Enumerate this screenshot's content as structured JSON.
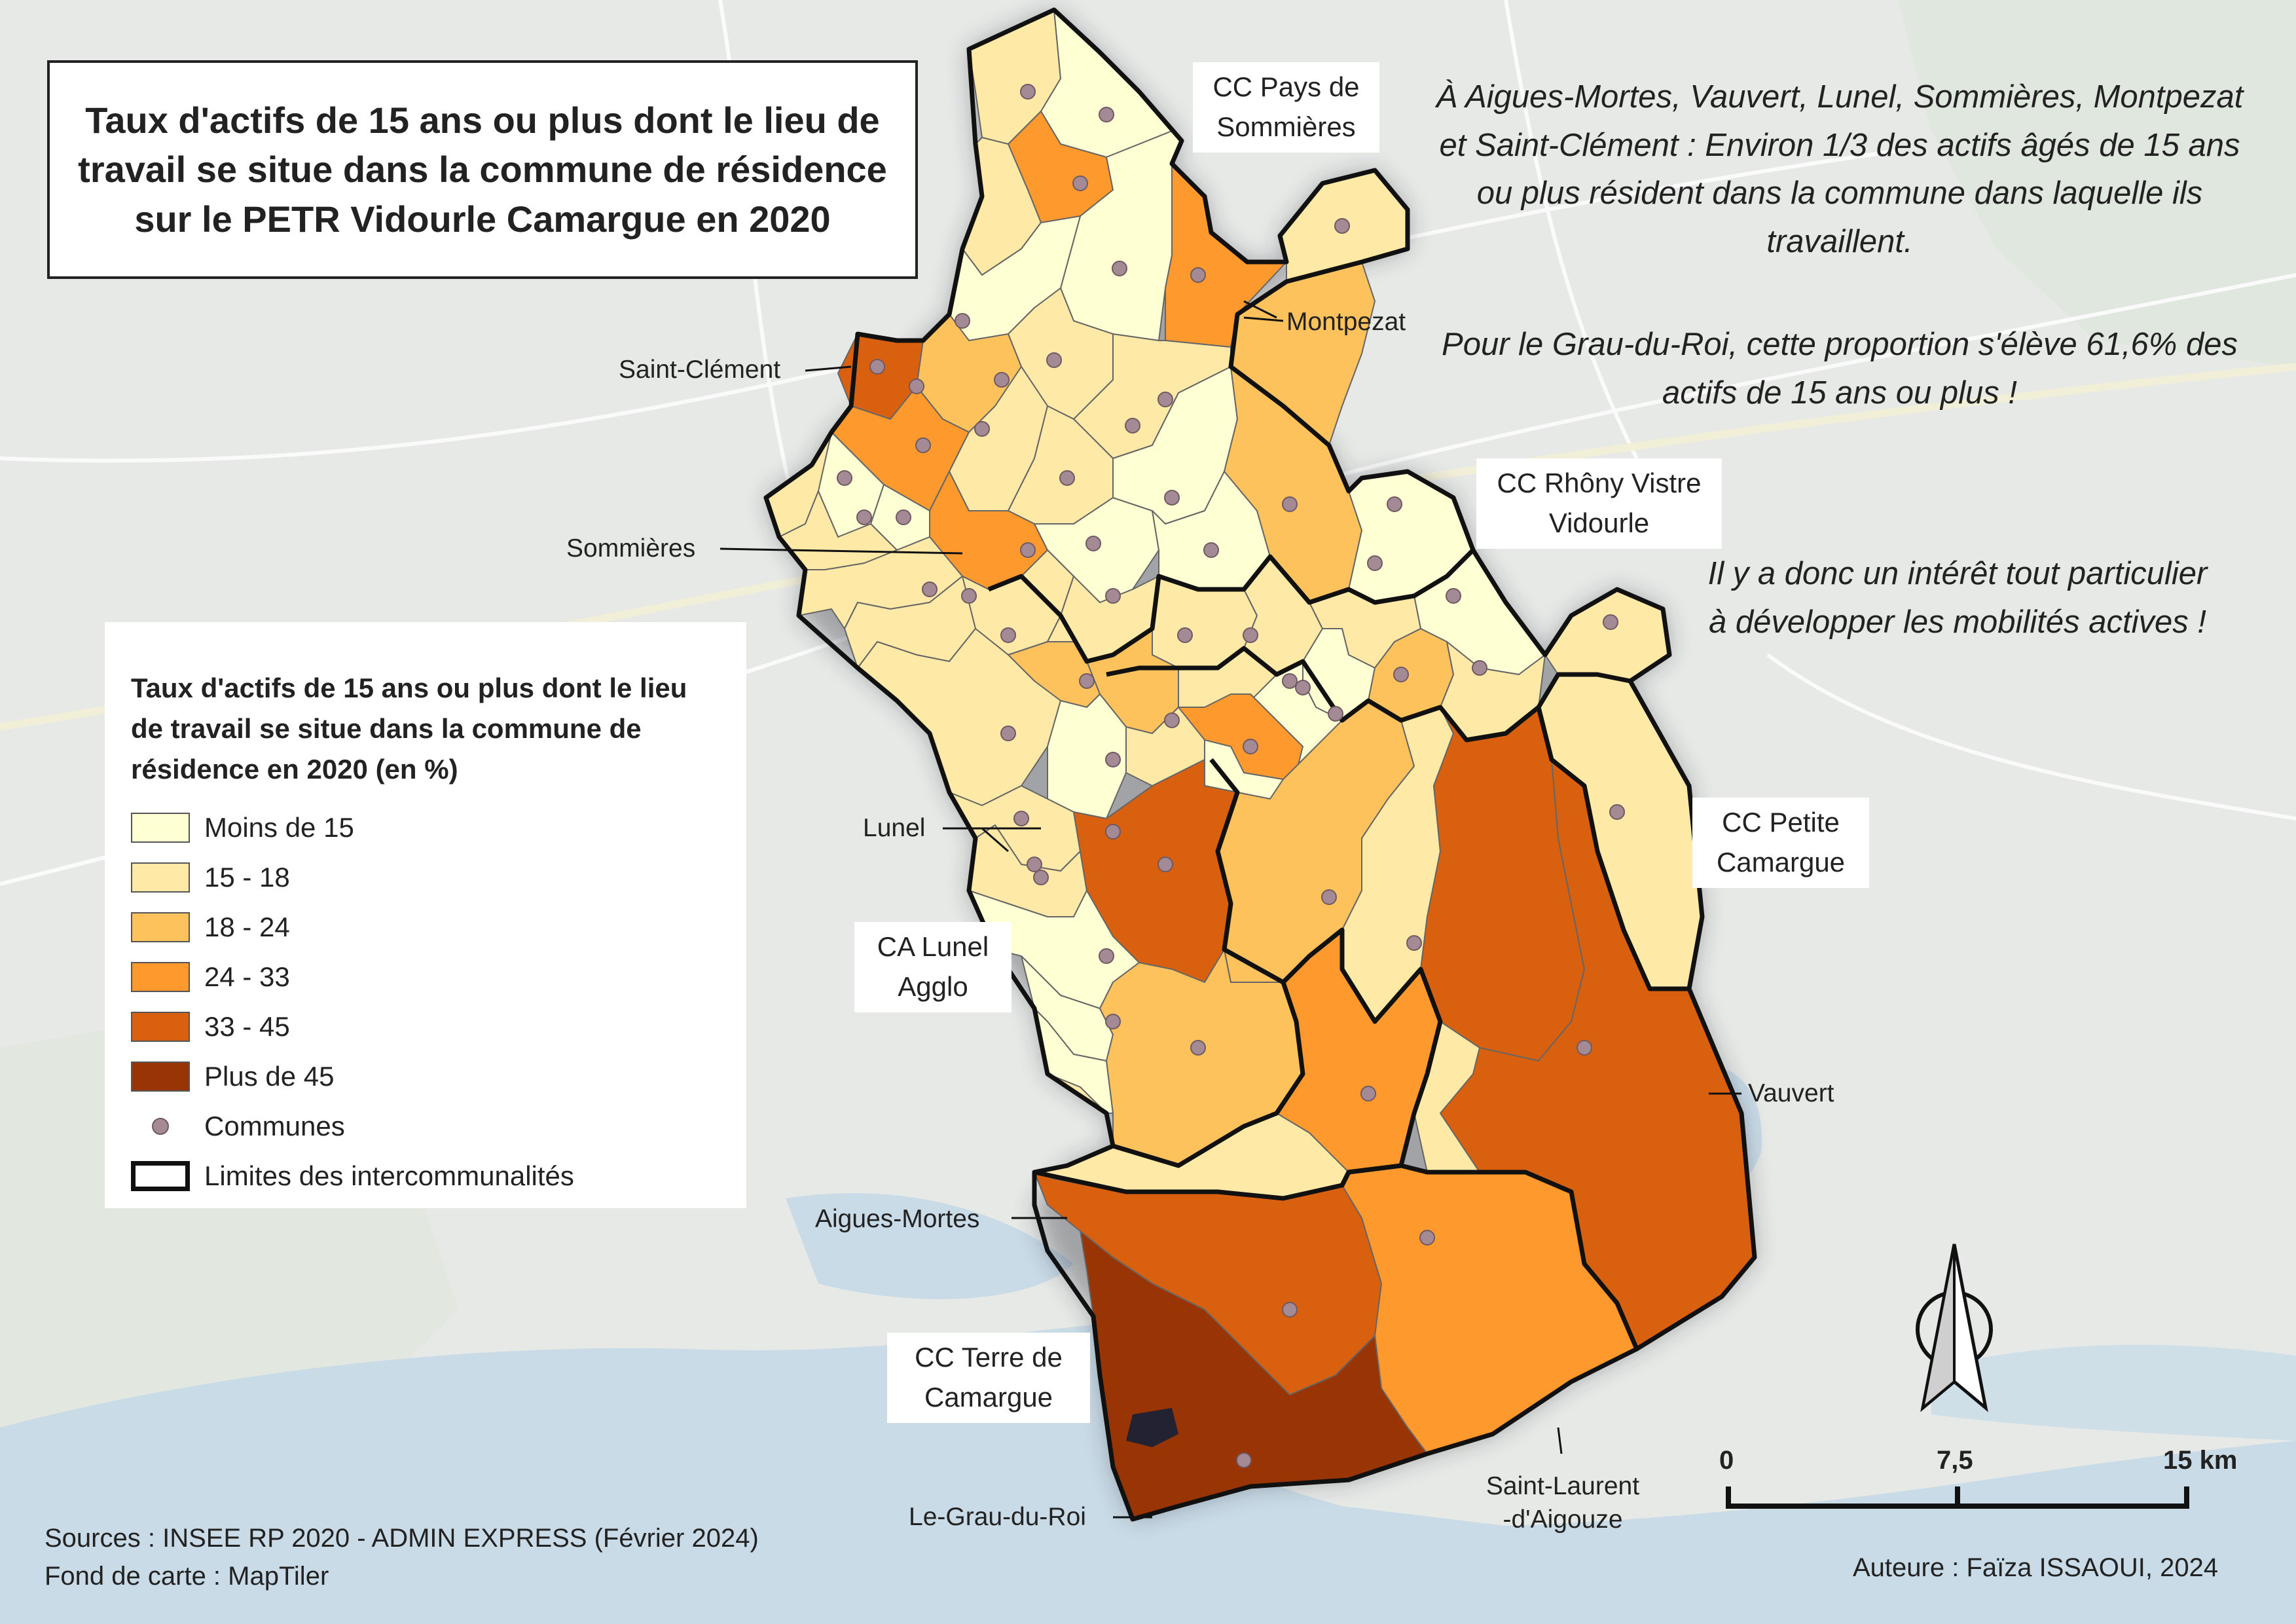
{
  "title": "Taux d'actifs de 15 ans ou plus dont le lieu de travail se situe dans la commune de résidence sur le PETR Vidourle Camargue en 2020",
  "notes": {
    "note1": "À Aigues-Mortes, Vauvert, Lunel, Sommières, Montpezat et Saint-Clément : Environ 1/3 des actifs âgés de 15 ans ou plus résident dans la commune dans laquelle ils travaillent.",
    "note2": "Pour le Grau-du-Roi, cette proportion s'élève 61,6% des actifs de 15 ans ou plus !",
    "note3": "Il y a donc un intérêt tout particulier à développer les mobilités actives !"
  },
  "intercommunalities": {
    "pays_sommieres": "CC Pays de Sommières",
    "rhony": "CC Rhôny Vistre Vidourle",
    "petite_camargue": "CC Petite Camargue",
    "lunel_agglo": "CA Lunel Agglo",
    "terre_camargue": "CC Terre de Camargue"
  },
  "places": {
    "montpezat": "Montpezat",
    "saint_clement": "Saint-Clément",
    "sommieres": "Sommières",
    "lunel": "Lunel",
    "vauvert": "Vauvert",
    "aigues_mortes": "Aigues-Mortes",
    "grau_du_roi": "Le-Grau-du-Roi",
    "saint_laurent": "Saint-Laurent -d'Aigouze"
  },
  "legend": {
    "title": "Taux d'actifs de 15 ans ou plus dont le lieu de travail se situe dans la commune de résidence en 2020 (en %)",
    "classes": [
      {
        "label": "Moins de 15",
        "color": "#ffffd4"
      },
      {
        "label": "15 - 18",
        "color": "#fee9a6"
      },
      {
        "label": "18 - 24",
        "color": "#fec25c"
      },
      {
        "label": "24 - 33",
        "color": "#fe9a2d"
      },
      {
        "label": "33 - 45",
        "color": "#d9600f"
      },
      {
        "label": "Plus de 45",
        "color": "#993404"
      }
    ],
    "communes_label": "Communes",
    "boundary_label": "Limites des intercommunalités"
  },
  "scale": {
    "zero": "0",
    "mid": "7,5",
    "end": "15 km"
  },
  "sources": "Sources : INSEE RP 2020 - ADMIN EXPRESS (Février 2024)",
  "basemap": "Fond de carte : MapTiler",
  "author": "Auteure : Faïza ISSAOUI, 2024"
}
